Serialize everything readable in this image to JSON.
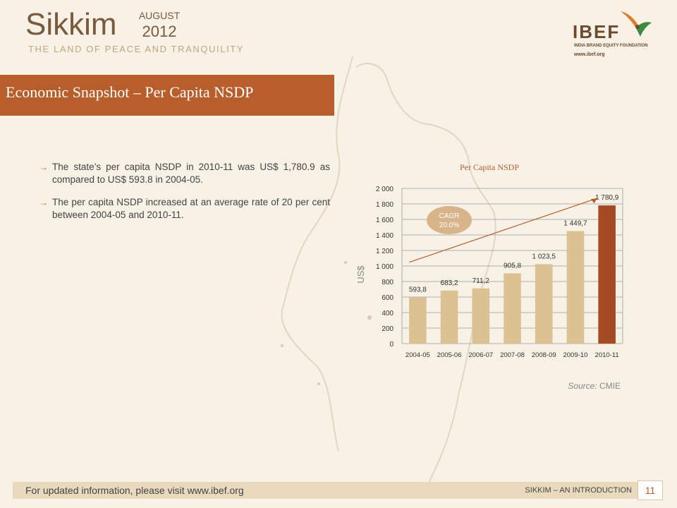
{
  "header": {
    "title": "Sikkim",
    "month": "AUGUST",
    "year": "2012",
    "tagline": "THE LAND OF PEACE AND TRANQUILITY"
  },
  "logo": {
    "text": "IBEF",
    "subtitle": "INDIA BRAND EQUITY FOUNDATION",
    "url": "www.ibef.org"
  },
  "section": {
    "title": "Economic Snapshot – Per Capita NSDP"
  },
  "bullets": [
    "The state’s per capita NSDP in 2010-11 was US$ 1,780.9 as compared to US$ 593.8 in 2004-05.",
    "The per capita NSDP increased at an average rate of 20 per cent between 2004-05 and 2010-11."
  ],
  "chart_title": "Per Capita NSDP",
  "source": {
    "label": "Source:",
    "value": "CMIE"
  },
  "footer": {
    "left": "For updated information, please visit www.ibef.org",
    "right": "SIKKIM – AN INTRODUCTION",
    "page": "11"
  },
  "colors": {
    "accent": "#b85e2b",
    "bar": "#dcc193",
    "bar_highlight": "#a54b24",
    "cagr_bubble": "#d7b48a"
  },
  "chart_data": {
    "type": "bar",
    "title": "Per Capita NSDP",
    "ylabel": "US$",
    "xlabel": "",
    "categories": [
      "2004-05",
      "2005-06",
      "2006-07",
      "2007-08",
      "2008-09",
      "2009-10",
      "2010-11"
    ],
    "values": [
      593.8,
      683.2,
      711.2,
      905.8,
      1023.5,
      1449.7,
      1780.9
    ],
    "value_labels": [
      "593,8",
      "683,2",
      "711,2",
      "905,8",
      "1 023,5",
      "1 449,7",
      "1 780,9"
    ],
    "ylim": [
      0,
      2000
    ],
    "yticks": [
      0,
      200,
      400,
      600,
      800,
      1000,
      1200,
      1400,
      1600,
      1800,
      2000
    ],
    "ytick_labels": [
      "0",
      "200",
      "400",
      "600",
      "800",
      "1 000",
      "1 200",
      "1 400",
      "1 600",
      "1 800",
      "2 000"
    ],
    "grid": true,
    "annotation": {
      "label_line1": "CAGR",
      "label_line2": "20.0%"
    }
  }
}
